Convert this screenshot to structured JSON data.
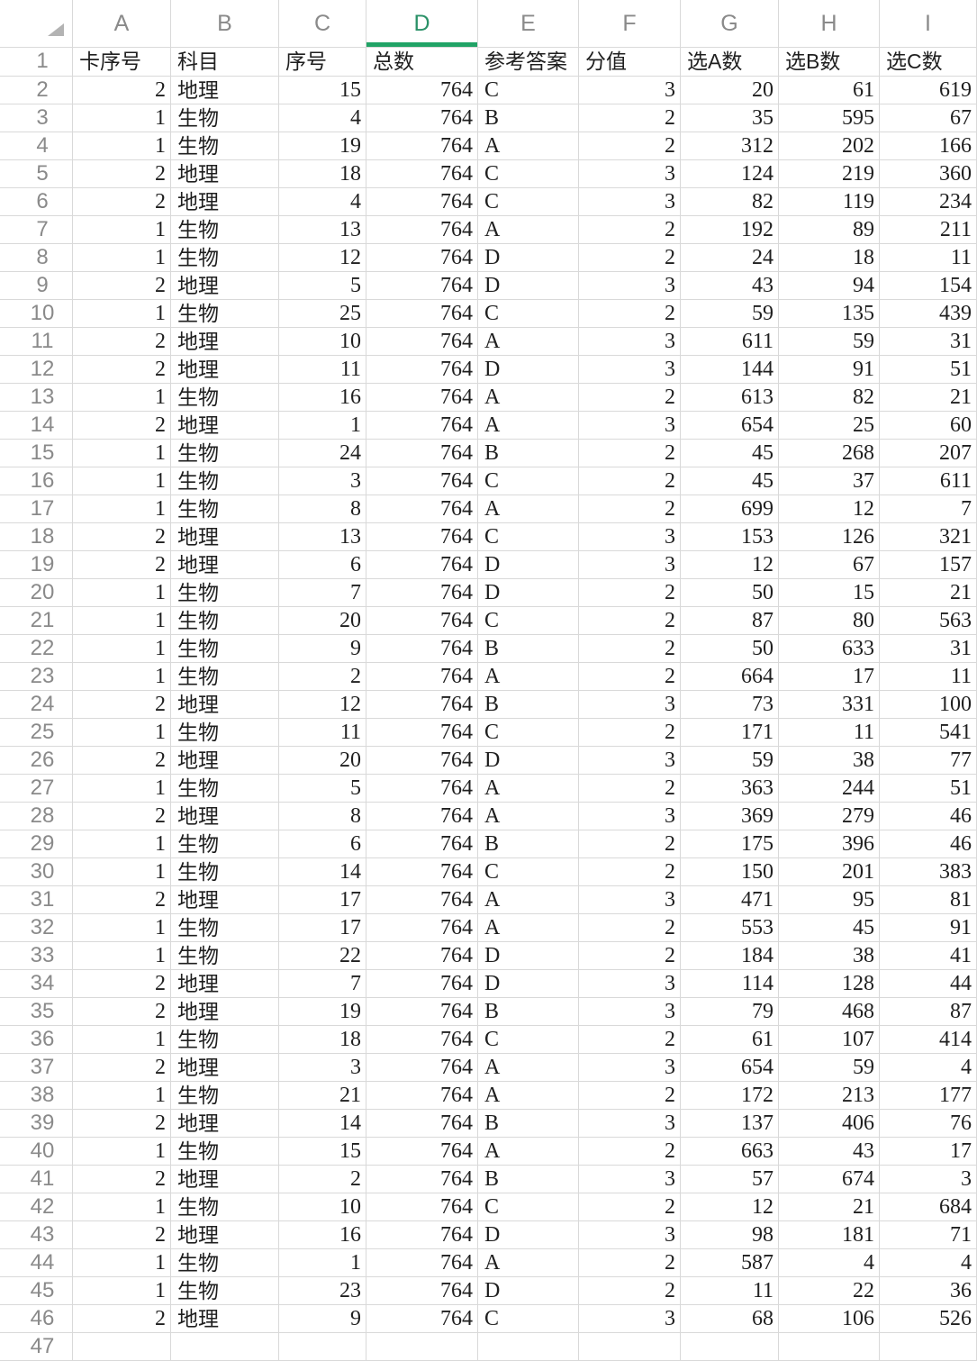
{
  "sheet": {
    "column_letters": [
      "A",
      "B",
      "C",
      "D",
      "E",
      "F",
      "G",
      "H",
      "I"
    ],
    "selected_column": "D",
    "row1": {
      "num": "1",
      "headers": [
        "卡序号",
        "科目",
        "序号",
        "总数",
        "参考答案",
        "分值",
        "选A数",
        "选B数",
        "选C数"
      ]
    },
    "rows": [
      {
        "num": "2",
        "cells": [
          "2",
          "地理",
          "15",
          "764",
          "C",
          "3",
          "20",
          "61",
          "619"
        ]
      },
      {
        "num": "3",
        "cells": [
          "1",
          "生物",
          "4",
          "764",
          "B",
          "2",
          "35",
          "595",
          "67"
        ]
      },
      {
        "num": "4",
        "cells": [
          "1",
          "生物",
          "19",
          "764",
          "A",
          "2",
          "312",
          "202",
          "166"
        ]
      },
      {
        "num": "5",
        "cells": [
          "2",
          "地理",
          "18",
          "764",
          "C",
          "3",
          "124",
          "219",
          "360"
        ]
      },
      {
        "num": "6",
        "cells": [
          "2",
          "地理",
          "4",
          "764",
          "C",
          "3",
          "82",
          "119",
          "234"
        ]
      },
      {
        "num": "7",
        "cells": [
          "1",
          "生物",
          "13",
          "764",
          "A",
          "2",
          "192",
          "89",
          "211"
        ]
      },
      {
        "num": "8",
        "cells": [
          "1",
          "生物",
          "12",
          "764",
          "D",
          "2",
          "24",
          "18",
          "11"
        ]
      },
      {
        "num": "9",
        "cells": [
          "2",
          "地理",
          "5",
          "764",
          "D",
          "3",
          "43",
          "94",
          "154"
        ]
      },
      {
        "num": "10",
        "cells": [
          "1",
          "生物",
          "25",
          "764",
          "C",
          "2",
          "59",
          "135",
          "439"
        ]
      },
      {
        "num": "11",
        "cells": [
          "2",
          "地理",
          "10",
          "764",
          "A",
          "3",
          "611",
          "59",
          "31"
        ]
      },
      {
        "num": "12",
        "cells": [
          "2",
          "地理",
          "11",
          "764",
          "D",
          "3",
          "144",
          "91",
          "51"
        ]
      },
      {
        "num": "13",
        "cells": [
          "1",
          "生物",
          "16",
          "764",
          "A",
          "2",
          "613",
          "82",
          "21"
        ]
      },
      {
        "num": "14",
        "cells": [
          "2",
          "地理",
          "1",
          "764",
          "A",
          "3",
          "654",
          "25",
          "60"
        ]
      },
      {
        "num": "15",
        "cells": [
          "1",
          "生物",
          "24",
          "764",
          "B",
          "2",
          "45",
          "268",
          "207"
        ]
      },
      {
        "num": "16",
        "cells": [
          "1",
          "生物",
          "3",
          "764",
          "C",
          "2",
          "45",
          "37",
          "611"
        ]
      },
      {
        "num": "17",
        "cells": [
          "1",
          "生物",
          "8",
          "764",
          "A",
          "2",
          "699",
          "12",
          "7"
        ]
      },
      {
        "num": "18",
        "cells": [
          "2",
          "地理",
          "13",
          "764",
          "C",
          "3",
          "153",
          "126",
          "321"
        ]
      },
      {
        "num": "19",
        "cells": [
          "2",
          "地理",
          "6",
          "764",
          "D",
          "3",
          "12",
          "67",
          "157"
        ]
      },
      {
        "num": "20",
        "cells": [
          "1",
          "生物",
          "7",
          "764",
          "D",
          "2",
          "50",
          "15",
          "21"
        ]
      },
      {
        "num": "21",
        "cells": [
          "1",
          "生物",
          "20",
          "764",
          "C",
          "2",
          "87",
          "80",
          "563"
        ]
      },
      {
        "num": "22",
        "cells": [
          "1",
          "生物",
          "9",
          "764",
          "B",
          "2",
          "50",
          "633",
          "31"
        ]
      },
      {
        "num": "23",
        "cells": [
          "1",
          "生物",
          "2",
          "764",
          "A",
          "2",
          "664",
          "17",
          "11"
        ]
      },
      {
        "num": "24",
        "cells": [
          "2",
          "地理",
          "12",
          "764",
          "B",
          "3",
          "73",
          "331",
          "100"
        ]
      },
      {
        "num": "25",
        "cells": [
          "1",
          "生物",
          "11",
          "764",
          "C",
          "2",
          "171",
          "11",
          "541"
        ]
      },
      {
        "num": "26",
        "cells": [
          "2",
          "地理",
          "20",
          "764",
          "D",
          "3",
          "59",
          "38",
          "77"
        ]
      },
      {
        "num": "27",
        "cells": [
          "1",
          "生物",
          "5",
          "764",
          "A",
          "2",
          "363",
          "244",
          "51"
        ]
      },
      {
        "num": "28",
        "cells": [
          "2",
          "地理",
          "8",
          "764",
          "A",
          "3",
          "369",
          "279",
          "46"
        ]
      },
      {
        "num": "29",
        "cells": [
          "1",
          "生物",
          "6",
          "764",
          "B",
          "2",
          "175",
          "396",
          "46"
        ]
      },
      {
        "num": "30",
        "cells": [
          "1",
          "生物",
          "14",
          "764",
          "C",
          "2",
          "150",
          "201",
          "383"
        ]
      },
      {
        "num": "31",
        "cells": [
          "2",
          "地理",
          "17",
          "764",
          "A",
          "3",
          "471",
          "95",
          "81"
        ]
      },
      {
        "num": "32",
        "cells": [
          "1",
          "生物",
          "17",
          "764",
          "A",
          "2",
          "553",
          "45",
          "91"
        ]
      },
      {
        "num": "33",
        "cells": [
          "1",
          "生物",
          "22",
          "764",
          "D",
          "2",
          "184",
          "38",
          "41"
        ]
      },
      {
        "num": "34",
        "cells": [
          "2",
          "地理",
          "7",
          "764",
          "D",
          "3",
          "114",
          "128",
          "44"
        ]
      },
      {
        "num": "35",
        "cells": [
          "2",
          "地理",
          "19",
          "764",
          "B",
          "3",
          "79",
          "468",
          "87"
        ]
      },
      {
        "num": "36",
        "cells": [
          "1",
          "生物",
          "18",
          "764",
          "C",
          "2",
          "61",
          "107",
          "414"
        ]
      },
      {
        "num": "37",
        "cells": [
          "2",
          "地理",
          "3",
          "764",
          "A",
          "3",
          "654",
          "59",
          "4"
        ]
      },
      {
        "num": "38",
        "cells": [
          "1",
          "生物",
          "21",
          "764",
          "A",
          "2",
          "172",
          "213",
          "177"
        ]
      },
      {
        "num": "39",
        "cells": [
          "2",
          "地理",
          "14",
          "764",
          "B",
          "3",
          "137",
          "406",
          "76"
        ]
      },
      {
        "num": "40",
        "cells": [
          "1",
          "生物",
          "15",
          "764",
          "A",
          "2",
          "663",
          "43",
          "17"
        ]
      },
      {
        "num": "41",
        "cells": [
          "2",
          "地理",
          "2",
          "764",
          "B",
          "3",
          "57",
          "674",
          "3"
        ]
      },
      {
        "num": "42",
        "cells": [
          "1",
          "生物",
          "10",
          "764",
          "C",
          "2",
          "12",
          "21",
          "684"
        ]
      },
      {
        "num": "43",
        "cells": [
          "2",
          "地理",
          "16",
          "764",
          "D",
          "3",
          "98",
          "181",
          "71"
        ]
      },
      {
        "num": "44",
        "cells": [
          "1",
          "生物",
          "1",
          "764",
          "A",
          "2",
          "587",
          "4",
          "4"
        ]
      },
      {
        "num": "45",
        "cells": [
          "1",
          "生物",
          "23",
          "764",
          "D",
          "2",
          "11",
          "22",
          "36"
        ]
      },
      {
        "num": "46",
        "cells": [
          "2",
          "地理",
          "9",
          "764",
          "C",
          "3",
          "68",
          "106",
          "526"
        ]
      }
    ],
    "trailing_row_num": "47",
    "colors": {
      "accent": "#21a366",
      "selected_letter": "#2b9168",
      "header_text": "#8a8a8a",
      "grid_line": "#d9d9d9",
      "data_text": "#1f1f1f",
      "triangle": "#b3b3b3"
    }
  }
}
